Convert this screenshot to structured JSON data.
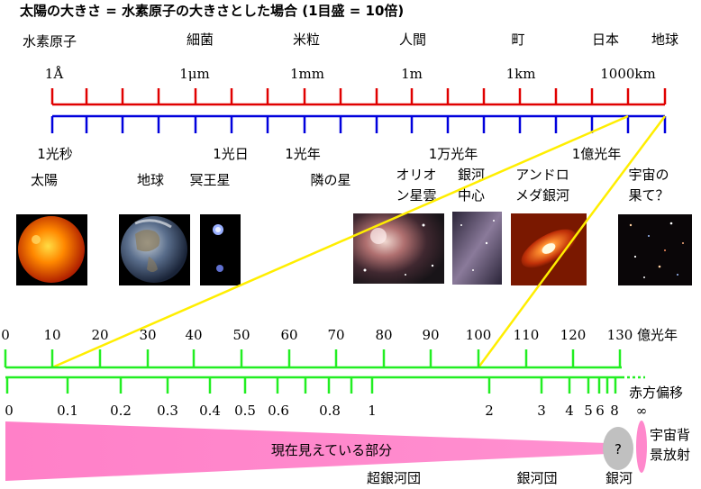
{
  "title": "太陽の大きさ = 水素原子の大きさとした場合 (1目盛 = 10倍)",
  "top_scale": {
    "headings": [
      "水素原子",
      "細菌",
      "米粒",
      "人間",
      "町",
      "日本",
      "地球"
    ],
    "units": [
      "1Å",
      "1μm",
      "1mm",
      "1m",
      "1km",
      "1000km"
    ],
    "distances": [
      "1光秒",
      "1光日",
      "1光年",
      "1万光年",
      "1億光年"
    ],
    "color_red": "#e00000",
    "color_blue": "#0000dd"
  },
  "objects": {
    "sun": "太陽",
    "earth": "地球",
    "pluto": "冥王星",
    "nearby_star": "隣の星",
    "orion": [
      "オリオ",
      "ン星雲"
    ],
    "galactic_center": [
      "銀河",
      "中心"
    ],
    "andromeda": [
      "アンドロ",
      "メダ銀河"
    ],
    "universe_edge": [
      "宇宙の",
      "果て？"
    ]
  },
  "lightyear_scale": {
    "ticks": [
      "0",
      "10",
      "20",
      "30",
      "40",
      "50",
      "60",
      "70",
      "80",
      "90",
      "100",
      "110",
      "120",
      "130"
    ],
    "unit": "億光年",
    "color": "#22ee22"
  },
  "redshift_scale": {
    "label": "赤方偏移",
    "ticks": [
      "0",
      "0.1",
      "0.2",
      "0.3",
      "0.4",
      "0.5",
      "0.6",
      "0.8",
      "1",
      "2",
      "3",
      "4",
      "5",
      "6",
      "8"
    ],
    "infinity": "∞"
  },
  "visible_region": {
    "label": "現在見えている部分",
    "question": "?",
    "cmb": [
      "宇宙背",
      "景放射"
    ],
    "color": "#ff88cc"
  },
  "structures": {
    "supercluster": "超銀河団",
    "cluster": "銀河団",
    "galaxy": "銀河"
  }
}
